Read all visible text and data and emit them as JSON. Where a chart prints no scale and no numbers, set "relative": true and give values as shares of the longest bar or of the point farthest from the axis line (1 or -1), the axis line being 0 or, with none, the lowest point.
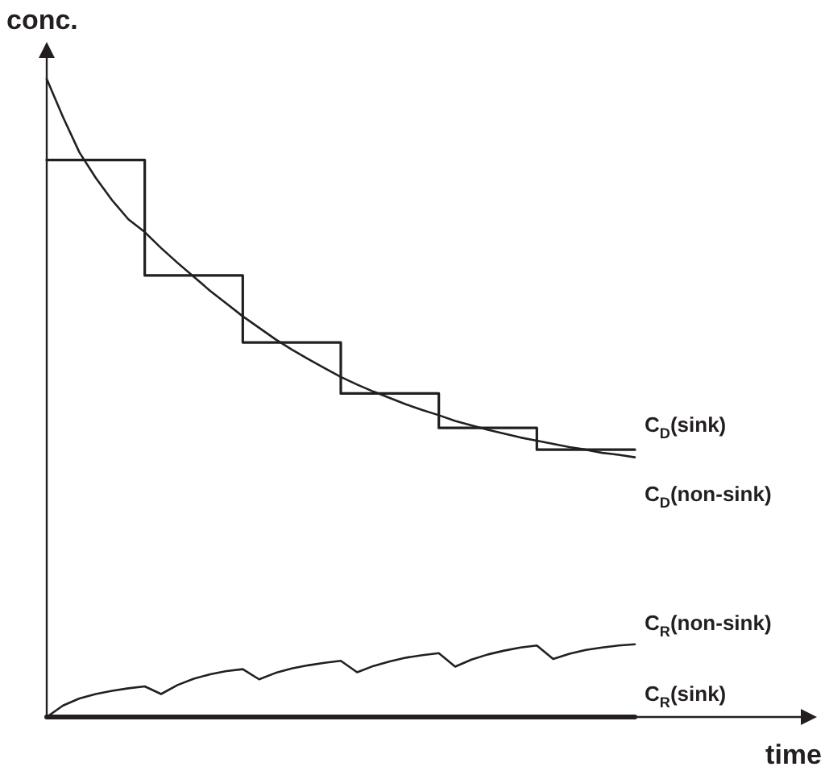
{
  "chart_data": {
    "type": "line",
    "relative": true,
    "xlabel": "time",
    "ylabel": "conc.",
    "legend": false,
    "categories": [
      null,
      null,
      null,
      null,
      null,
      null,
      null,
      null,
      null,
      null,
      null,
      null,
      null,
      null,
      null,
      null,
      null,
      null,
      null,
      null,
      null,
      null,
      null,
      null,
      null,
      null,
      null,
      null,
      null,
      null,
      null,
      null,
      null,
      null,
      null,
      null,
      null
    ],
    "series": [
      {
        "name": "C$_{D}$(sink)",
        "type": "step",
        "color": "#231f20",
        "values": [
          0.873,
          0.873,
          0.873,
          0.873,
          0.873,
          0.873,
          0.692,
          0.692,
          0.692,
          0.692,
          0.692,
          0.692,
          0.587,
          0.587,
          0.587,
          0.587,
          0.587,
          0.587,
          0.507,
          0.507,
          0.507,
          0.507,
          0.507,
          0.507,
          0.453,
          0.453,
          0.453,
          0.453,
          0.453,
          0.453,
          0.419,
          0.419,
          0.419,
          0.419,
          0.419,
          0.419,
          0.419
        ]
      },
      {
        "name": "C$_{D}$(non-sink)",
        "color": "#231f20",
        "values": [
          1,
          0.94,
          0.885,
          0.845,
          0.81,
          0.78,
          0.76,
          0.735,
          0.712,
          0.69,
          0.668,
          0.648,
          0.628,
          0.61,
          0.592,
          0.576,
          0.561,
          0.547,
          0.533,
          0.521,
          0.51,
          0.5,
          0.49,
          0.481,
          0.473,
          0.464,
          0.457,
          0.45,
          0.444,
          0.438,
          0.433,
          0.428,
          0.423,
          0.419,
          0.414,
          0.411,
          0.407
        ]
      },
      {
        "name": "C$_{R}$(non-sink)",
        "color": "#231f20",
        "values": [
          0,
          0.018,
          0.029,
          0.036,
          0.041,
          0.045,
          0.048,
          0.036,
          0.05,
          0.06,
          0.067,
          0.072,
          0.075,
          0.059,
          0.069,
          0.076,
          0.081,
          0.085,
          0.088,
          0.07,
          0.08,
          0.087,
          0.093,
          0.097,
          0.1,
          0.079,
          0.09,
          0.098,
          0.104,
          0.109,
          0.112,
          0.091,
          0.099,
          0.105,
          0.109,
          0.112,
          0.114
        ]
      },
      {
        "name": "C$_{R}$(sink)",
        "color": "#231f20",
        "values": [
          0,
          0,
          0,
          0,
          0,
          0,
          0,
          0,
          0,
          0,
          0,
          0,
          0,
          0,
          0,
          0,
          0,
          0,
          0,
          0,
          0,
          0,
          0,
          0,
          0,
          0,
          0,
          0,
          0,
          0,
          0,
          0,
          0,
          0,
          0,
          0,
          0
        ]
      }
    ]
  }
}
